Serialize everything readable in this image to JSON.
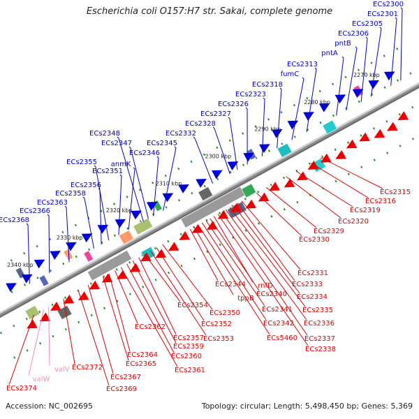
{
  "header": {
    "title": "Escherichia coli O157:H7 str. Sakai, complete genome"
  },
  "footer": {
    "accession": "Accession: NC_002695",
    "topology": "Topology: circular; Length: 5,498,450 bp; Genes: 5,369"
  },
  "colors": {
    "backbone": "#8c8c8c",
    "dash": "#2e8b2e",
    "label_top": "#0000cc",
    "label_bottom": "#dd0000",
    "label_rna": "#ff88bb",
    "arrow_top": "#0000dd",
    "arrow_bottom": "#ee0000"
  },
  "axis": {
    "unit": "kbp",
    "ticks": [
      {
        "label": "2270 kbp",
        "pos": 2270
      },
      {
        "label": "2280 kbp",
        "pos": 2280
      },
      {
        "label": "2290 kbp",
        "pos": 2290
      },
      {
        "label": "2300 kbp",
        "pos": 2300
      },
      {
        "label": "2310 kbp",
        "pos": 2310
      },
      {
        "label": "2320 kbp",
        "pos": 2320
      },
      {
        "label": "2330 kbp",
        "pos": 2330
      },
      {
        "label": "2340 kbp",
        "pos": 2340
      }
    ]
  },
  "genes_top": [
    {
      "name": "ECs2300",
      "pos": 2265.0
    },
    {
      "name": "ECs2301",
      "pos": 2267.0
    },
    {
      "name": "ECs2305",
      "pos": 2271.0
    },
    {
      "name": "ECs2306",
      "pos": 2273.0
    },
    {
      "name": "pntB",
      "pos": 2276.0
    },
    {
      "name": "pntA",
      "pos": 2278.0
    },
    {
      "name": "ECs2313",
      "pos": 2284.0
    },
    {
      "name": "fumC",
      "pos": 2287.0
    },
    {
      "name": "ECs2318",
      "pos": 2290.0
    },
    {
      "name": "ECs2323",
      "pos": 2293.0
    },
    {
      "name": "ECs2326",
      "pos": 2296.0
    },
    {
      "name": "ECs2327",
      "pos": 2298.0
    },
    {
      "name": "ECs2328",
      "pos": 2299.5
    },
    {
      "name": "ECs2332",
      "pos": 2303.0
    },
    {
      "name": "ECs2345",
      "pos": 2313.0
    },
    {
      "name": "ECs2346",
      "pos": 2315.0
    },
    {
      "name": "ECs2347",
      "pos": 2316.0
    },
    {
      "name": "ECs2348",
      "pos": 2317.0
    },
    {
      "name": "anmK",
      "pos": 2320.0
    },
    {
      "name": "ECs2351",
      "pos": 2322.0
    },
    {
      "name": "ECs2355",
      "pos": 2324.0
    },
    {
      "name": "ECs2356",
      "pos": 2325.5
    },
    {
      "name": "ECs2358",
      "pos": 2327.0
    },
    {
      "name": "ECs2363",
      "pos": 2332.0
    },
    {
      "name": "ECs2366",
      "pos": 2336.0
    },
    {
      "name": "ECs2368",
      "pos": 2340.0
    }
  ],
  "genes_bottom": [
    {
      "name": "ECs2315",
      "pos": 2284.0
    },
    {
      "name": "ECs2316",
      "pos": 2286.0
    },
    {
      "name": "ECs2319",
      "pos": 2289.0
    },
    {
      "name": "ECs2320",
      "pos": 2291.0
    },
    {
      "name": "ECs2329",
      "pos": 2295.0
    },
    {
      "name": "ECs2330",
      "pos": 2297.0
    },
    {
      "name": "ECs2331",
      "pos": 2300.0
    },
    {
      "name": "ECs2333",
      "pos": 2300.8
    },
    {
      "name": "ECs2334",
      "pos": 2301.6
    },
    {
      "name": "ECs2335",
      "pos": 2302.4
    },
    {
      "name": "ECs2336",
      "pos": 2303.2
    },
    {
      "name": "ECs2337",
      "pos": 2304.0
    },
    {
      "name": "ECs2338",
      "pos": 2304.8
    },
    {
      "name": "rnfD",
      "pos": 2305.6
    },
    {
      "name": "ECs2340",
      "pos": 2306.4
    },
    {
      "name": "ECs2341",
      "pos": 2307.2
    },
    {
      "name": "ECs2342",
      "pos": 2308.0
    },
    {
      "name": "ECs5460",
      "pos": 2308.8
    },
    {
      "name": "tppB",
      "pos": 2309.6
    },
    {
      "name": "ECs2344",
      "pos": 2310.4
    },
    {
      "name": "ECs2350",
      "pos": 2316.0
    },
    {
      "name": "ECs2352",
      "pos": 2317.2
    },
    {
      "name": "ECs2353",
      "pos": 2318.4
    },
    {
      "name": "ECs2354",
      "pos": 2319.6
    },
    {
      "name": "ECs2357",
      "pos": 2320.8
    },
    {
      "name": "ECs2359",
      "pos": 2322.0
    },
    {
      "name": "ECs2360",
      "pos": 2323.2
    },
    {
      "name": "ECs2361",
      "pos": 2324.4
    },
    {
      "name": "ECs2362",
      "pos": 2325.6
    },
    {
      "name": "ECs2364",
      "pos": 2326.8
    },
    {
      "name": "ECs2365",
      "pos": 2328.0
    },
    {
      "name": "ECs2367",
      "pos": 2331.0
    },
    {
      "name": "ECs2369",
      "pos": 2333.0
    },
    {
      "name": "ECs2372",
      "pos": 2336.0
    },
    {
      "name": "valV",
      "pos": 2339.0
    },
    {
      "name": "valW",
      "pos": 2340.0
    },
    {
      "name": "ECs2374",
      "pos": 2342.0
    }
  ]
}
